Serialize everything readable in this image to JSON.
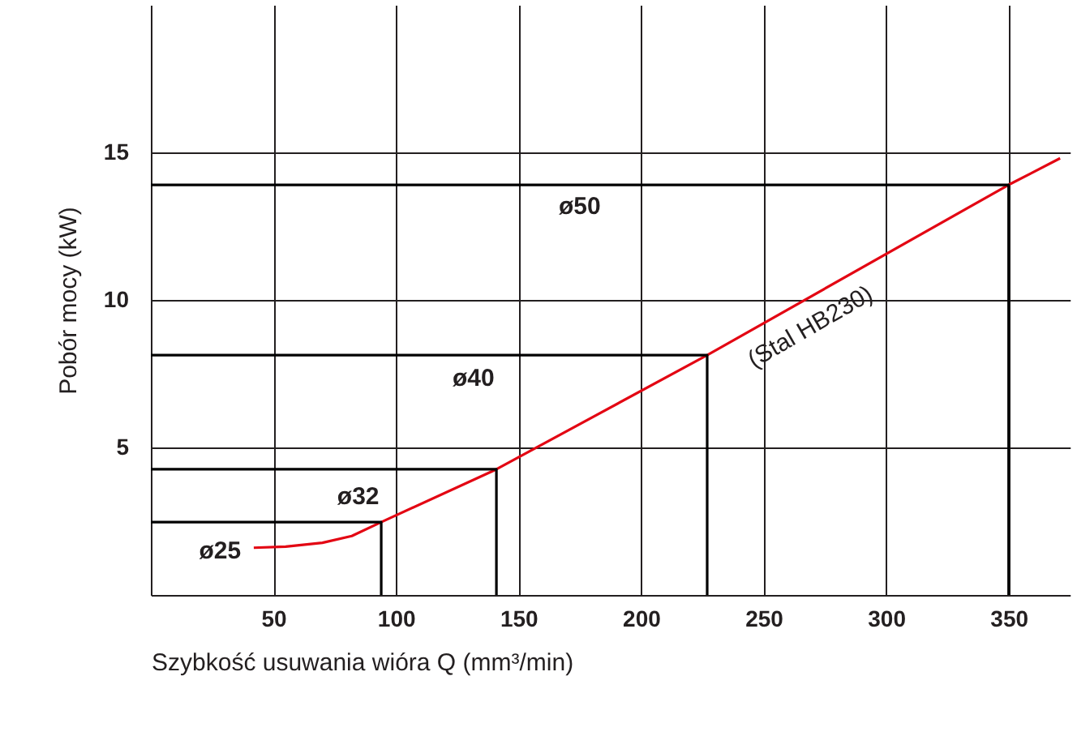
{
  "chart_data": {
    "type": "line",
    "xlabel": "Szybkość usuwania wióra Q (mm³/min)",
    "ylabel": "Pobór mocy (kW)",
    "xlim": [
      0,
      375
    ],
    "xticks": [
      50,
      100,
      150,
      200,
      250,
      300,
      350
    ],
    "ylim": [
      0,
      20
    ],
    "yticks": [
      5,
      10,
      15
    ],
    "grid": true,
    "series": [
      {
        "name": "(Stal HB230)",
        "color": "#e30613",
        "x": [
          42,
          55,
          70,
          82,
          94,
          141,
          227,
          350,
          371
        ],
        "values": [
          1.6,
          1.64,
          1.77,
          2.0,
          2.47,
          4.26,
          8.13,
          13.9,
          14.8
        ]
      },
      {
        "name": "ø25",
        "color": "#000000",
        "x": [
          0,
          94,
          94
        ],
        "values": [
          2.47,
          2.47,
          0
        ]
      },
      {
        "name": "ø32",
        "color": "#000000",
        "x": [
          0,
          141,
          141
        ],
        "values": [
          4.26,
          4.26,
          0
        ]
      },
      {
        "name": "ø40",
        "color": "#000000",
        "x": [
          0,
          227,
          227
        ],
        "values": [
          8.13,
          8.13,
          0
        ]
      },
      {
        "name": "ø50",
        "color": "#000000",
        "x": [
          0,
          350,
          350
        ],
        "values": [
          13.9,
          13.9,
          0
        ]
      }
    ]
  }
}
